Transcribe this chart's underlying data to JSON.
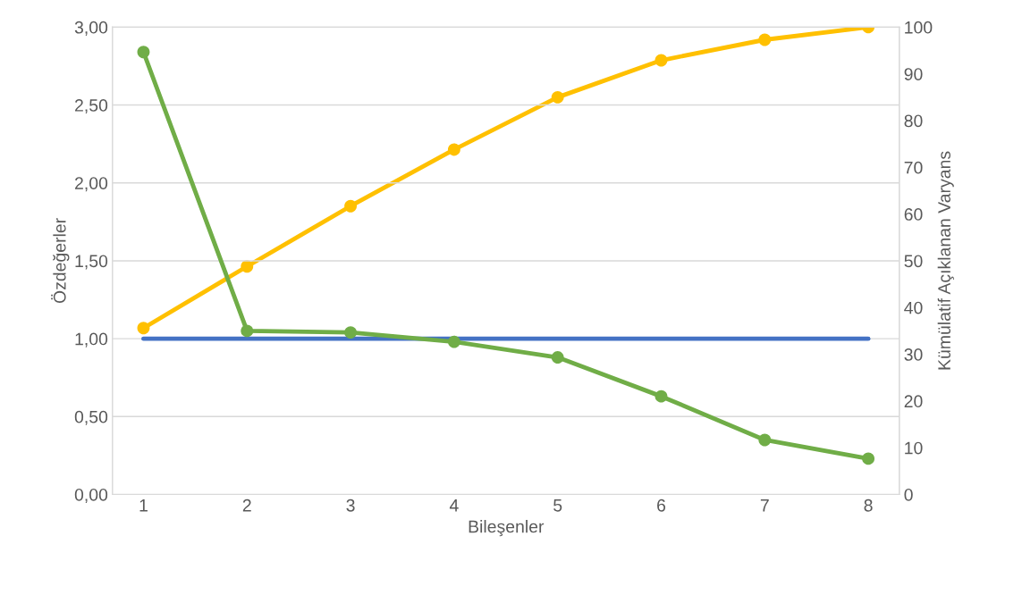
{
  "chart_data": {
    "type": "line",
    "xlabel": "Bileşenler",
    "ylabel": "Özdeğerler",
    "y2label": "Kümülatif Açıklanan Varyans",
    "categories": [
      "1",
      "2",
      "3",
      "4",
      "5",
      "6",
      "7",
      "8"
    ],
    "series": [
      {
        "color": "#4472c4",
        "values": [
          1,
          1,
          1,
          1,
          1,
          1,
          1,
          1
        ],
        "marker": "none"
      },
      {
        "color": "#70ad47",
        "values": [
          2.84,
          1.05,
          1.04,
          0.98,
          0.88,
          0.63,
          0.35,
          0.23
        ],
        "marker": "circle"
      },
      {
        "color": "#ffc000",
        "values": [
          35.6,
          48.8,
          61.7,
          73.8,
          85.0,
          92.9,
          97.3,
          100
        ],
        "marker": "circle",
        "axis": "y2"
      }
    ],
    "ylim": [
      0,
      3
    ],
    "yticks": [
      {
        "value": 0,
        "label": "0,00"
      },
      {
        "value": 0.5,
        "label": "0,50"
      },
      {
        "value": 1,
        "label": "1,00"
      },
      {
        "value": 1.5,
        "label": "1,50"
      },
      {
        "value": 2,
        "label": "2,00"
      },
      {
        "value": 2.5,
        "label": "2,50"
      },
      {
        "value": 3,
        "label": "3,00"
      }
    ],
    "y2lim": [
      0,
      100
    ],
    "y2ticks": [
      0,
      10,
      20,
      30,
      40,
      50,
      60,
      70,
      80,
      90,
      100
    ],
    "grid": "y",
    "legend": false,
    "line_style": "solid"
  }
}
